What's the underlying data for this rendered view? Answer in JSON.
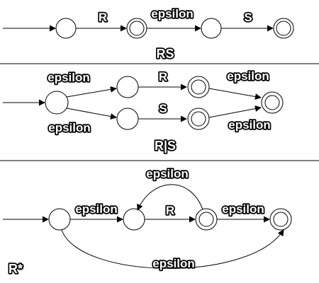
{
  "colors": {
    "ink": "#000000",
    "background": "#ffffff"
  },
  "concatenation": {
    "caption": "RS",
    "label_r": "R",
    "label_epsilon": "epsilon",
    "label_s": "S"
  },
  "alternation": {
    "caption": "R|S",
    "label_epsilon_upper_in": "epsilon",
    "label_epsilon_lower_in": "epsilon",
    "label_r": "R",
    "label_s": "S",
    "label_epsilon_upper_out": "epsilon",
    "label_epsilon_lower_out": "epsilon"
  },
  "kleene_star": {
    "caption": "R*",
    "label_epsilon_entry": "epsilon",
    "label_epsilon_loop": "epsilon",
    "label_r": "R",
    "label_epsilon_exit": "epsilon",
    "label_epsilon_skip": "epsilon"
  }
}
